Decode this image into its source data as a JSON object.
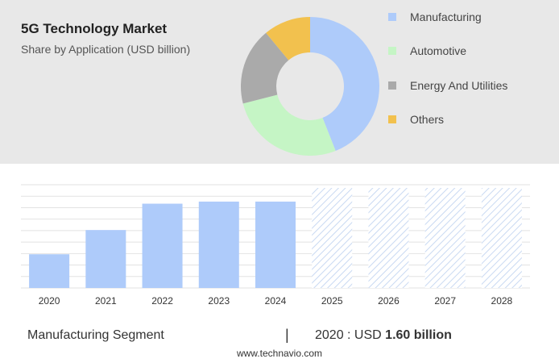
{
  "header": {
    "title": "5G Technology Market",
    "subtitle": "Share by Application (USD billion)"
  },
  "chart_data": [
    {
      "type": "pie",
      "title": "Share by Application (USD billion)",
      "categories": [
        "Manufacturing",
        "Automotive",
        "Energy And Utilities",
        "Others"
      ],
      "values": [
        44,
        27,
        18,
        11
      ],
      "colors": [
        "#aecbfa",
        "#c5f5c5",
        "#aaaaaa",
        "#f2c14e"
      ],
      "donut": true,
      "legend": "right"
    },
    {
      "type": "bar",
      "title": "",
      "categories": [
        "2020",
        "2021",
        "2022",
        "2023",
        "2024",
        "2025",
        "2026",
        "2027",
        "2028"
      ],
      "values": [
        1.6,
        2.75,
        4.0,
        4.1,
        4.1,
        null,
        null,
        null,
        null
      ],
      "forecast_categories": [
        "2025",
        "2026",
        "2027",
        "2028"
      ],
      "forecast_pattern": "hatched",
      "bar_color": "#aecbfa",
      "ylim": [
        0,
        4.9
      ],
      "grid": true
    }
  ],
  "footer": {
    "segment_label": "Manufacturing Segment",
    "separator": "|",
    "value_prefix": "2020 : USD",
    "value_bold": "1.60 billion"
  },
  "source": "www.technavio.com"
}
